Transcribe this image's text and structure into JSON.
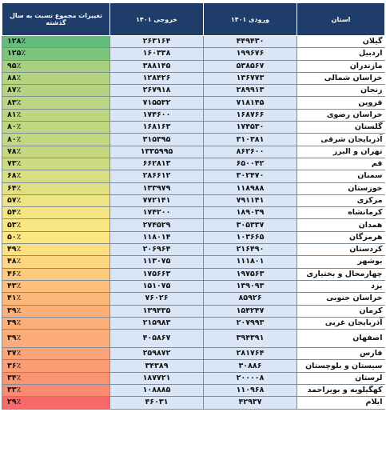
{
  "headers": {
    "province": "استان",
    "in_1401": "ورودی ۱۴۰۱",
    "out_1401": "خروجی ۱۴۰۱",
    "change": "تغییرات مجموع نسبت به سال گذشته"
  },
  "rows": [
    {
      "province": "گیلان",
      "in": "۴۴۹۴۳۰",
      "out": "۲۶۳۱۶۴",
      "change": "۱۲۸٪",
      "color": "#63be7b"
    },
    {
      "province": "اردبیل",
      "in": "۱۹۹۶۷۶",
      "out": "۱۶۰۳۳۸",
      "change": "۱۲۵٪",
      "color": "#7ec47d"
    },
    {
      "province": "مازندران",
      "in": "۵۳۸۵۶۷",
      "out": "۳۸۸۱۴۵",
      "change": "۹۵٪",
      "color": "#a8d07f"
    },
    {
      "province": "خراسان شمالی",
      "in": "۱۳۶۷۷۳",
      "out": "۱۲۸۴۲۶",
      "change": "۸۸٪",
      "color": "#b4d480"
    },
    {
      "province": "زنجان",
      "in": "۲۸۹۹۱۳",
      "out": "۲۶۷۹۱۸",
      "change": "۸۷٪",
      "color": "#b5d480"
    },
    {
      "province": "قزوین",
      "in": "۷۱۸۱۴۵",
      "out": "۷۱۵۵۳۲",
      "change": "۸۳٪",
      "color": "#bbd680"
    },
    {
      "province": "خراسان رضوی",
      "in": "۱۶۸۷۶۶",
      "out": "۱۷۴۶۰۰",
      "change": "۸۱٪",
      "color": "#bed680"
    },
    {
      "province": "گلستان",
      "in": "۱۷۴۵۳۰",
      "out": "۱۶۸۱۶۳",
      "change": "۸۰٪",
      "color": "#c0d780"
    },
    {
      "province": "آذربایجان شرقی",
      "in": "۳۱۰۳۸۱",
      "out": "۳۱۵۳۹۵",
      "change": "۸۰٪",
      "color": "#c1d780"
    },
    {
      "province": "تهران و البرز",
      "in": "۸۶۲۶۰۰",
      "out": "۱۳۳۵۹۹۵",
      "change": "۷۸٪",
      "color": "#c5d880"
    },
    {
      "province": "قم",
      "in": "۶۵۰۰۴۲",
      "out": "۶۶۲۸۱۳",
      "change": "۷۳٪",
      "color": "#cfdb81"
    },
    {
      "province": "سمنان",
      "in": "۳۰۲۴۷۰",
      "out": "۲۸۶۶۱۲",
      "change": "۶۸٪",
      "color": "#d9de81"
    },
    {
      "province": "خوزستان",
      "in": "۱۱۸۹۸۸",
      "out": "۱۳۳۹۷۹",
      "change": "۶۴٪",
      "color": "#e1e082"
    },
    {
      "province": "مرکزی",
      "in": "۷۹۱۱۴۱",
      "out": "۷۷۲۱۴۱",
      "change": "۵۷٪",
      "color": "#efe483"
    },
    {
      "province": "کرمانشاه",
      "in": "۱۸۹۰۳۹",
      "out": "۱۷۴۲۰۰",
      "change": "۵۴٪",
      "color": "#f5e683"
    },
    {
      "province": "همدان",
      "in": "۳۰۵۳۳۷",
      "out": "۲۷۴۵۲۹",
      "change": "۵۳٪",
      "color": "#f8e783"
    },
    {
      "province": "هرمزگان",
      "in": "۱۰۳۶۶۵",
      "out": "۱۱۸۰۱۴",
      "change": "۵۰٪",
      "color": "#fee683"
    },
    {
      "province": "کردستان",
      "in": "۲۱۶۴۹۰",
      "out": "۲۰۶۹۶۴",
      "change": "۴۹٪",
      "color": "#fede82"
    },
    {
      "province": "بوشهر",
      "in": "۱۱۱۸۰۱",
      "out": "۱۱۳۰۷۵",
      "change": "۴۸٪",
      "color": "#fed580"
    },
    {
      "province": "چهارمحال و بختیاری",
      "in": "۱۹۷۵۶۳",
      "out": "۱۷۵۶۶۳",
      "change": "۴۶٪",
      "color": "#fdc97d"
    },
    {
      "province": "یزد",
      "in": "۱۳۹۰۹۳",
      "out": "۱۵۱۰۷۵",
      "change": "۴۳٪",
      "color": "#fdbf7b"
    },
    {
      "province": "خراسان جنوبی",
      "in": "۸۵۹۲۶",
      "out": "۷۶۰۲۶",
      "change": "۴۱٪",
      "color": "#fcb77a"
    },
    {
      "province": "کرمان",
      "in": "۱۵۴۲۴۷",
      "out": "۱۳۹۴۳۵",
      "change": "۳۹٪",
      "color": "#fcb079"
    },
    {
      "province": "آذربایجان غربی",
      "in": "۲۰۷۹۹۳",
      "out": "۲۱۵۹۸۳",
      "change": "۳۹٪",
      "color": "#fcae79"
    },
    {
      "province": "اصفهان",
      "in": "۳۹۴۳۹۱",
      "out": "۴۰۵۸۶۷",
      "change": "۳۹٪",
      "color": "#fcac78",
      "tall": true
    },
    {
      "province": "فارس",
      "in": "۲۸۱۷۶۴",
      "out": "۲۵۹۸۷۲",
      "change": "۳۷٪",
      "color": "#fba376"
    },
    {
      "province": "سیستان و بلوچستان",
      "in": "۳۰۸۸۶",
      "out": "۳۴۳۸۹",
      "change": "۳۶٪",
      "color": "#fb9d75"
    },
    {
      "province": "لرستان",
      "in": "۲۰۰۰۰۸",
      "out": "۱۸۷۷۲۱",
      "change": "۳۴٪",
      "color": "#fa9473"
    },
    {
      "province": "کهگیلویه و بویراحمد",
      "in": "۱۱۰۹۶۸",
      "out": "۱۰۸۸۸۵",
      "change": "۳۳٪",
      "color": "#f98b71"
    },
    {
      "province": "ایلام",
      "in": "۴۲۹۳۷",
      "out": "۴۶۰۳۱",
      "change": "۲۹٪",
      "color": "#f8696b"
    }
  ]
}
